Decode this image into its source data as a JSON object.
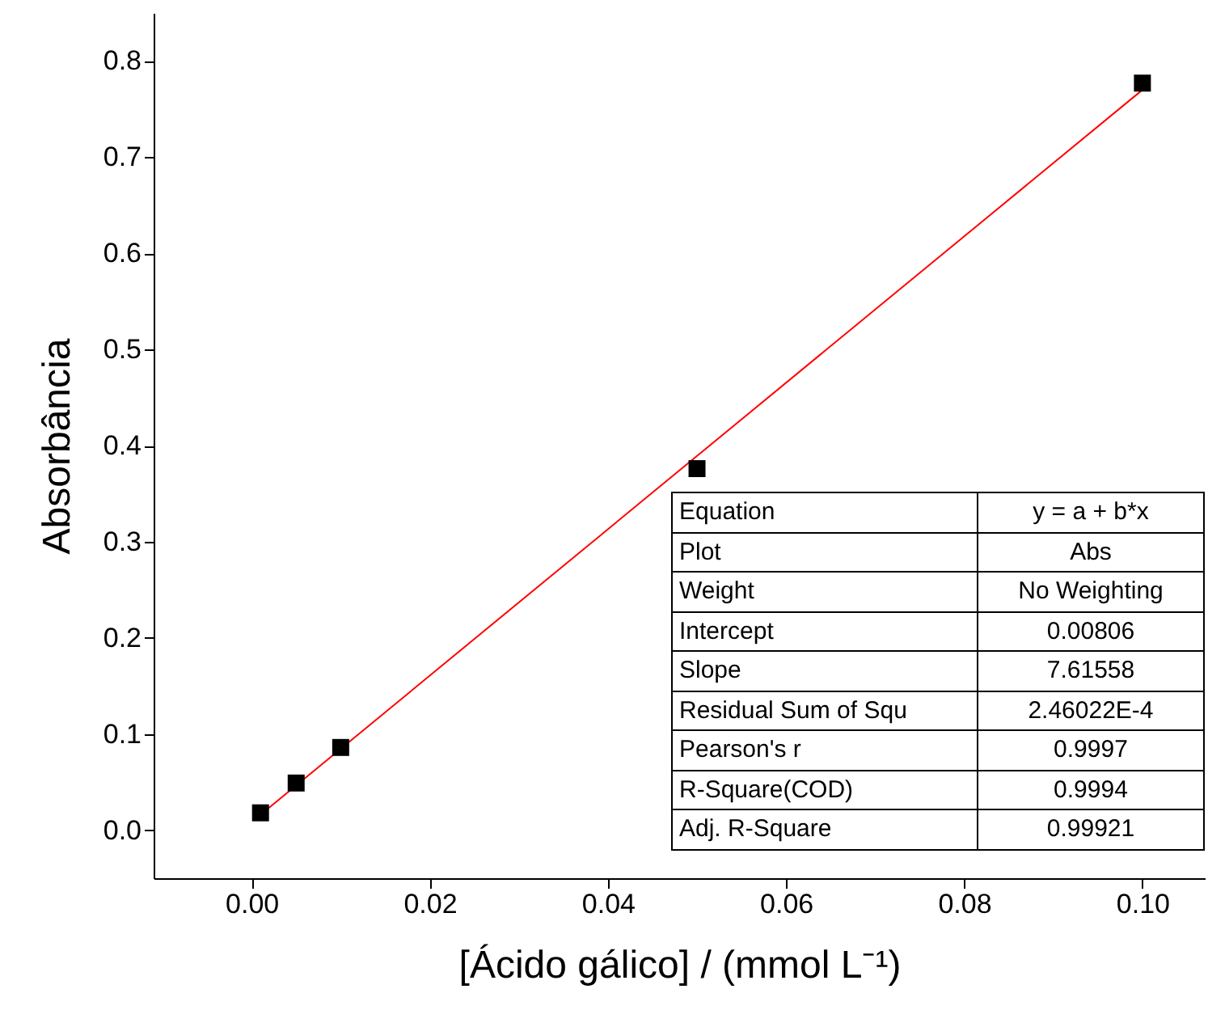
{
  "chart_data": {
    "type": "scatter",
    "xlabel": "[Ácido gálico] / (mmol L⁻¹)",
    "ylabel": "Absorbância",
    "xlim": [
      -0.011,
      0.107
    ],
    "ylim": [
      -0.05,
      0.85
    ],
    "xticks": [
      {
        "value": 0,
        "label": "0.00"
      },
      {
        "value": 0.02,
        "label": "0.02"
      },
      {
        "value": 0.04,
        "label": "0.04"
      },
      {
        "value": 0.06,
        "label": "0.06"
      },
      {
        "value": 0.08,
        "label": "0.08"
      },
      {
        "value": 0.1,
        "label": "0.10"
      }
    ],
    "yticks": [
      {
        "value": 0,
        "label": "0.0"
      },
      {
        "value": 0.1,
        "label": "0.1"
      },
      {
        "value": 0.2,
        "label": "0.2"
      },
      {
        "value": 0.3,
        "label": "0.3"
      },
      {
        "value": 0.4,
        "label": "0.4"
      },
      {
        "value": 0.5,
        "label": "0.5"
      },
      {
        "value": 0.6,
        "label": "0.6"
      },
      {
        "value": 0.7,
        "label": "0.7"
      },
      {
        "value": 0.8,
        "label": "0.8"
      }
    ],
    "grid": false,
    "series": [
      {
        "marker": "square",
        "color": "#000000",
        "x": [
          0.001,
          0.005,
          0.01,
          0.05,
          0.1
        ],
        "values": [
          0.018,
          0.049,
          0.086,
          0.376,
          0.777
        ]
      },
      {
        "type": "line",
        "color": "#ff0000",
        "x": [
          0.001,
          0.1
        ],
        "values": [
          0.016,
          0.77
        ]
      }
    ],
    "annotations": [
      "Equation",
      "y = a + b*x",
      "Plot",
      "Abs",
      "Weight",
      "No Weighting",
      "Intercept",
      "0.00806",
      "Slope",
      "7.61558",
      "Residual Sum of Squ",
      "2.46022E-4",
      "Pearson's r",
      "0.9997",
      "R-Square(COD)",
      "0.9994",
      "Adj. R-Square",
      "0.99921"
    ]
  }
}
